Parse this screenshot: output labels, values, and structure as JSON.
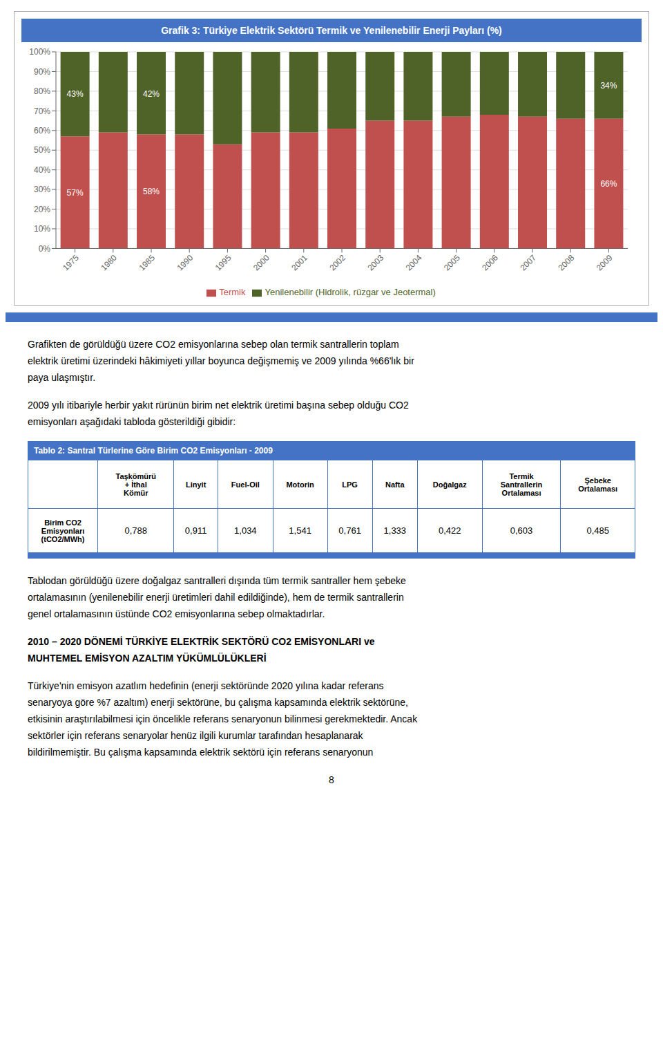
{
  "chart_data": [
    {
      "type": "bar",
      "title": "Grafik 3: Türkiye Elektrik Sektörü Termik ve Yenilenebilir Enerji Payları (%)",
      "categories": [
        "1975",
        "1980",
        "1985",
        "1990",
        "1995",
        "2000",
        "2001",
        "2002",
        "2003",
        "2004",
        "2005",
        "2006",
        "2007",
        "2008",
        "2009"
      ],
      "series": [
        {
          "name": "Termik",
          "color": "#C0504D",
          "values": [
            57,
            59,
            58,
            58,
            53,
            59,
            59,
            61,
            65,
            65,
            67,
            68,
            67,
            66,
            66
          ]
        },
        {
          "name": "Yenilenebilir (Hidrolik, rüzgar ve Jeotermal)",
          "color": "#4F6228",
          "values": [
            43,
            41,
            42,
            42,
            47,
            41,
            41,
            39,
            35,
            35,
            33,
            32,
            33,
            34,
            34
          ]
        }
      ],
      "stacked": true,
      "ylim": [
        0,
        100
      ],
      "yticks": [
        {
          "value": 0,
          "label": "0%"
        },
        {
          "value": 10,
          "label": "10%"
        },
        {
          "value": 20,
          "label": "20%"
        },
        {
          "value": 30,
          "label": "30%"
        },
        {
          "value": 40,
          "label": "40%"
        },
        {
          "value": 50,
          "label": "50%"
        },
        {
          "value": 60,
          "label": "60%"
        },
        {
          "value": 70,
          "label": "70%"
        },
        {
          "value": 80,
          "label": "80%"
        },
        {
          "value": 90,
          "label": "90%"
        },
        {
          "value": 100,
          "label": "100%"
        }
      ],
      "grid": true,
      "legend": "bottom",
      "annotations": [
        {
          "category": "1975",
          "y": 28.5,
          "text": "57%"
        },
        {
          "category": "1975",
          "y": 78.5,
          "text": "43%"
        },
        {
          "category": "1985",
          "y": 29.0,
          "text": "58%"
        },
        {
          "category": "1985",
          "y": 78.5,
          "text": "42%"
        },
        {
          "category": "2009",
          "y": 83.0,
          "text": "34%"
        },
        {
          "category": "2009",
          "y": 33.0,
          "text": "66%"
        }
      ]
    },
    {
      "type": "table",
      "title": "Tablo 2: Santral Türlerine Göre Birim CO2 Emisyonları - 2009",
      "columns": [
        "Taşkömürü\n+ İthal\nKömür",
        "Linyit",
        "Fuel-Oil",
        "Motorin",
        "LPG",
        "Nafta",
        "Doğalgaz",
        "Termik\nSantrallerin\nOrtalaması",
        "Şebeke\nOrtalaması"
      ],
      "rows": [
        {
          "name": "Birim CO2\nEmisyonları\n(tCO2/MWh)",
          "values": [
            0.788,
            0.911,
            1.034,
            1.541,
            0.761,
            1.333,
            0.422,
            0.603,
            0.485
          ],
          "value_labels": [
            "0,788",
            "0,911",
            "1,034",
            "1,541",
            "0,761",
            "1,333",
            "0,422",
            "0,603",
            "0,485"
          ]
        }
      ]
    }
  ],
  "paragraphs_before_table": [
    [
      "Grafikten de görüldüğü üzere CO2 emisyonlarına sebep olan termik santrallerin toplam",
      "elektrik üretimi üzerindeki hâkimiyeti yıllar boyunca değişmemiş ve 2009 yılında %66'lık bir",
      "paya ulaşmıştır."
    ],
    [
      "2009 yılı itibariyle herbir yakıt rürünün birim net elektrik üretimi başına sebep olduğu CO2",
      "emisyonları aşağıdaki tabloda gösterildiği gibidir:"
    ]
  ],
  "paragraphs_after_table": [
    [
      "Tablodan görüldüğü üzere doğalgaz santralleri dışında tüm termik santraller hem şebeke",
      "ortalamasının (yenilenebilir enerji üretimleri dahil edildiğinde), hem de termik santrallerin",
      "genel ortalamasının üstünde CO2 emisyonlarına sebep olmaktadırlar."
    ]
  ],
  "heading": [
    "2010 – 2020 DÖNEMİ TÜRKİYE ELEKTRİK SEKTÖRÜ CO2 EMİSYONLARI ve",
    "MUHTEMEL EMİSYON AZALTIM YÜKÜMLÜLÜKLERİ"
  ],
  "paragraphs_after_heading": [
    [
      "Türkiye'nin emisyon azatlım hedefinin (enerji sektöründe 2020 yılına kadar referans",
      "senaryoya göre %7 azaltım) enerji sektörüne, bu çalışma kapsamında elektrik sektörüne,",
      "etkisinin araştırılabilmesi için öncelikle referans senaryonun bilinmesi gerekmektedir. Ancak",
      "sektörler için referans senaryolar henüz ilgili kurumlar tarafından hesaplanarak",
      "bildirilmemiştir. Bu çalışma kapsamında elektrik sektörü için referans senaryonun"
    ]
  ],
  "page_number": "8"
}
